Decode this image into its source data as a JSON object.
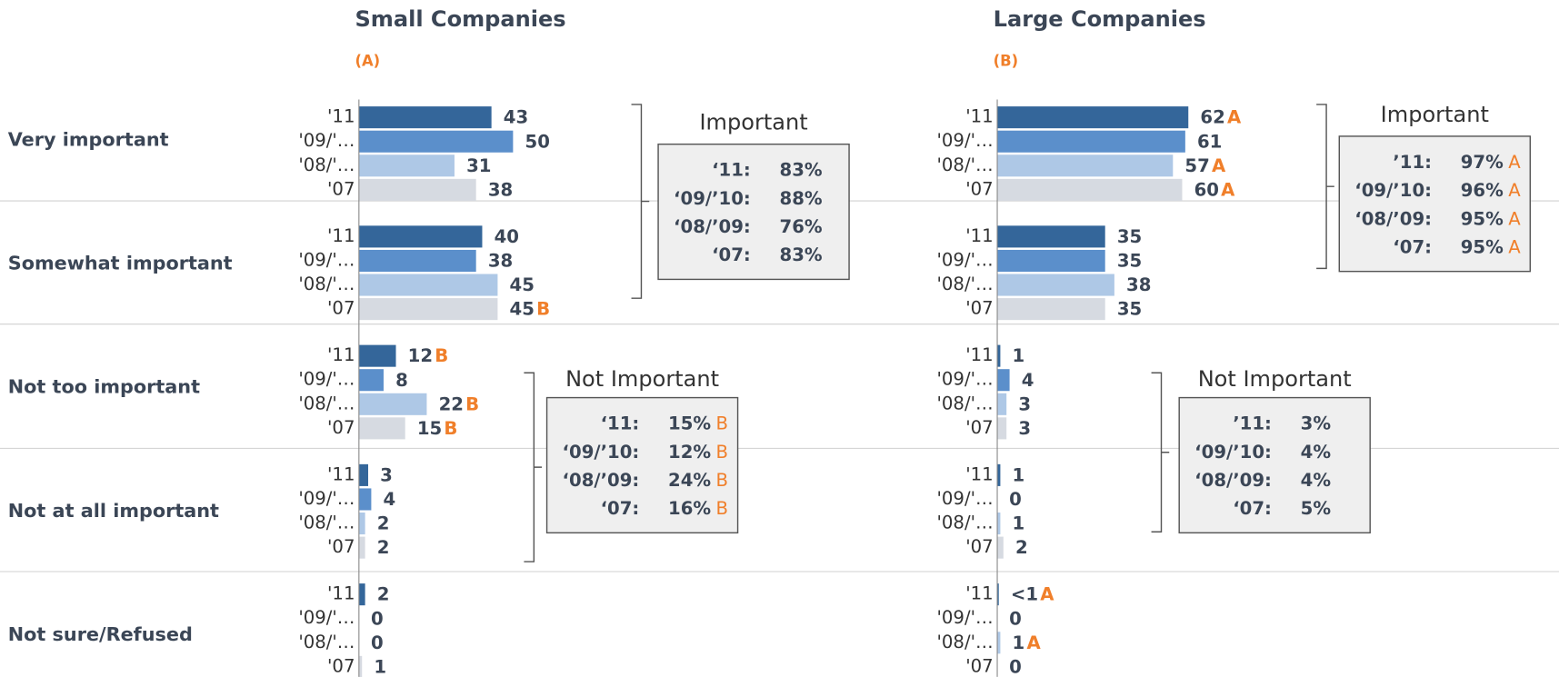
{
  "chart_data": [
    {
      "type": "bar",
      "title": "Small Companies",
      "subtitle": "(A)",
      "categories": [
        "Very important",
        "Somewhat important",
        "Not too important",
        "Not at all important",
        "Not sure/Refused"
      ],
      "xlim": [
        0,
        100
      ],
      "series": [
        {
          "name": "'11",
          "color": "#34669a",
          "values": [
            43,
            40,
            12,
            3,
            2
          ],
          "significance": [
            null,
            null,
            "B",
            null,
            null
          ]
        },
        {
          "name": "'09/'…",
          "color": "#5b8fcb",
          "values": [
            50,
            38,
            8,
            4,
            0
          ],
          "significance": [
            null,
            null,
            null,
            null,
            null
          ]
        },
        {
          "name": "'08/'…",
          "color": "#aec8e6",
          "values": [
            31,
            45,
            22,
            2,
            0
          ],
          "significance": [
            null,
            null,
            "B",
            null,
            null
          ]
        },
        {
          "name": "'07",
          "color": "#d6dae1",
          "values": [
            38,
            45,
            15,
            2,
            1
          ],
          "significance": [
            null,
            "B",
            "B",
            null,
            null
          ]
        }
      ],
      "summaries": [
        {
          "title": "Important",
          "rows": [
            {
              "label": "‘11:",
              "value": 83,
              "value_label": "83%",
              "sig": null
            },
            {
              "label": "‘09/’10:",
              "value": 88,
              "value_label": "88%",
              "sig": null
            },
            {
              "label": "‘08/’09:",
              "value": 76,
              "value_label": "76%",
              "sig": null
            },
            {
              "label": "‘07:",
              "value": 83,
              "value_label": "83%",
              "sig": null
            }
          ]
        },
        {
          "title": "Not Important",
          "rows": [
            {
              "label": "‘11:",
              "value": 15,
              "value_label": "15%",
              "sig": "B"
            },
            {
              "label": "‘09/’10:",
              "value": 12,
              "value_label": "12%",
              "sig": "B"
            },
            {
              "label": "‘08/’09:",
              "value": 24,
              "value_label": "24%",
              "sig": "B"
            },
            {
              "label": "‘07:",
              "value": 16,
              "value_label": "16%",
              "sig": "B"
            }
          ]
        }
      ]
    },
    {
      "type": "bar",
      "title": "Large Companies",
      "subtitle": "(B)",
      "xlim": [
        0,
        100
      ],
      "series": [
        {
          "name": "'11",
          "color": "#34669a",
          "values": [
            62,
            35,
            1,
            1,
            0.5
          ],
          "value_labels": [
            "62",
            "35",
            "1",
            "1",
            "<1"
          ],
          "significance": [
            "A",
            null,
            null,
            null,
            "A"
          ]
        },
        {
          "name": "'09/'…",
          "color": "#5b8fcb",
          "values": [
            61,
            35,
            4,
            0,
            0
          ],
          "significance": [
            null,
            null,
            null,
            null,
            null
          ]
        },
        {
          "name": "'08/'…",
          "color": "#aec8e6",
          "values": [
            57,
            38,
            3,
            1,
            1
          ],
          "significance": [
            "A",
            null,
            null,
            null,
            "A"
          ]
        },
        {
          "name": "'07",
          "color": "#d6dae1",
          "values": [
            60,
            35,
            3,
            2,
            0
          ],
          "significance": [
            "A",
            null,
            null,
            null,
            null
          ]
        }
      ],
      "summaries": [
        {
          "title": "Important",
          "rows": [
            {
              "label": "’11:",
              "value": 97,
              "value_label": "97%",
              "sig": "A"
            },
            {
              "label": "‘09/’10:",
              "value": 96,
              "value_label": "96%",
              "sig": "A"
            },
            {
              "label": "‘08/’09:",
              "value": 95,
              "value_label": "95%",
              "sig": "A"
            },
            {
              "label": "‘07:",
              "value": 95,
              "value_label": "95%",
              "sig": "A"
            }
          ]
        },
        {
          "title": "Not Important",
          "rows": [
            {
              "label": "’11:",
              "value": 3,
              "value_label": "3%",
              "sig": null
            },
            {
              "label": "‘09/’10:",
              "value": 4,
              "value_label": "4%",
              "sig": null
            },
            {
              "label": "‘08/’09:",
              "value": 4,
              "value_label": "4%",
              "sig": null
            },
            {
              "label": "‘07:",
              "value": 5,
              "value_label": "5%",
              "sig": null
            }
          ]
        }
      ]
    }
  ]
}
